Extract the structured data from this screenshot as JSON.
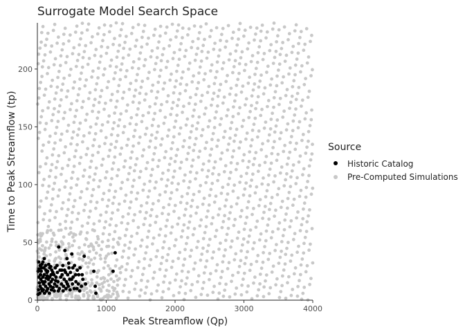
{
  "chart_data": {
    "type": "scatter",
    "title": "Surrogate Model Search Space",
    "xlabel": "Peak Streamflow (Qp)",
    "ylabel": "Time to Peak Streamflow (tp)",
    "xlim": [
      0,
      4000
    ],
    "ylim": [
      0,
      240
    ],
    "xticks": [
      0,
      1000,
      2000,
      3000,
      4000
    ],
    "yticks": [
      0,
      50,
      100,
      150,
      200
    ],
    "grid": false,
    "legend": {
      "title": "Source",
      "placement": "right",
      "entries": [
        {
          "label": "Historic Catalog",
          "color": "#000000"
        },
        {
          "label": "Pre-Computed Simulations",
          "color": "#c8c8c8"
        }
      ]
    },
    "series": [
      {
        "name": "Historic Catalog",
        "color": "#000000",
        "points": [
          [
            20,
            33
          ],
          [
            40,
            30
          ],
          [
            60,
            28
          ],
          [
            80,
            33
          ],
          [
            100,
            36
          ],
          [
            120,
            30
          ],
          [
            150,
            25
          ],
          [
            180,
            28
          ],
          [
            200,
            22
          ],
          [
            20,
            20
          ],
          [
            30,
            15
          ],
          [
            40,
            12
          ],
          [
            50,
            18
          ],
          [
            60,
            10
          ],
          [
            70,
            8
          ],
          [
            80,
            20
          ],
          [
            90,
            14
          ],
          [
            100,
            22
          ],
          [
            110,
            16
          ],
          [
            120,
            12
          ],
          [
            130,
            19
          ],
          [
            140,
            24
          ],
          [
            150,
            10
          ],
          [
            160,
            18
          ],
          [
            170,
            14
          ],
          [
            180,
            20
          ],
          [
            190,
            12
          ],
          [
            200,
            16
          ],
          [
            210,
            26
          ],
          [
            220,
            18
          ],
          [
            230,
            11
          ],
          [
            240,
            22
          ],
          [
            250,
            14
          ],
          [
            260,
            28
          ],
          [
            270,
            20
          ],
          [
            280,
            12
          ],
          [
            290,
            24
          ],
          [
            300,
            16
          ],
          [
            310,
            46
          ],
          [
            320,
            10
          ],
          [
            330,
            26
          ],
          [
            340,
            20
          ],
          [
            350,
            14
          ],
          [
            360,
            22
          ],
          [
            370,
            30
          ],
          [
            380,
            12
          ],
          [
            390,
            18
          ],
          [
            400,
            43
          ],
          [
            410,
            24
          ],
          [
            420,
            16
          ],
          [
            430,
            36
          ],
          [
            440,
            22
          ],
          [
            450,
            12
          ],
          [
            460,
            28
          ],
          [
            470,
            18
          ],
          [
            480,
            24
          ],
          [
            500,
            40
          ],
          [
            510,
            14
          ],
          [
            520,
            20
          ],
          [
            540,
            30
          ],
          [
            560,
            16
          ],
          [
            580,
            26
          ],
          [
            600,
            22
          ],
          [
            620,
            28
          ],
          [
            640,
            12
          ],
          [
            660,
            18
          ],
          [
            680,
            38
          ],
          [
            700,
            14
          ],
          [
            820,
            25
          ],
          [
            840,
            12
          ],
          [
            850,
            6
          ],
          [
            1130,
            41
          ],
          [
            1100,
            25
          ],
          [
            10,
            5
          ],
          [
            10,
            25
          ],
          [
            15,
            9
          ],
          [
            25,
            27
          ],
          [
            35,
            6
          ],
          [
            45,
            22
          ],
          [
            55,
            25
          ],
          [
            65,
            31
          ],
          [
            75,
            16
          ],
          [
            85,
            9
          ],
          [
            95,
            28
          ],
          [
            105,
            6
          ],
          [
            125,
            26
          ],
          [
            135,
            8
          ],
          [
            145,
            21
          ],
          [
            165,
            31
          ],
          [
            175,
            6
          ],
          [
            195,
            29
          ],
          [
            205,
            9
          ],
          [
            225,
            24
          ],
          [
            245,
            8
          ],
          [
            265,
            17
          ],
          [
            285,
            30
          ],
          [
            305,
            8
          ],
          [
            355,
            26
          ],
          [
            375,
            8
          ],
          [
            395,
            26
          ],
          [
            415,
            10
          ],
          [
            435,
            14
          ],
          [
            455,
            32
          ],
          [
            475,
            9
          ],
          [
            495,
            18
          ],
          [
            515,
            28
          ],
          [
            535,
            10
          ],
          [
            555,
            22
          ],
          [
            575,
            10
          ],
          [
            595,
            14
          ],
          [
            615,
            8
          ],
          [
            650,
            22
          ]
        ]
      },
      {
        "name": "Pre-Computed Simulations",
        "color": "#c8c8c8",
        "generation": {
          "count": 1500,
          "seed": 20240511,
          "x_range": [
            0,
            4000
          ],
          "y_range": [
            0,
            240
          ],
          "low_x_cluster": 260
        }
      }
    ]
  }
}
